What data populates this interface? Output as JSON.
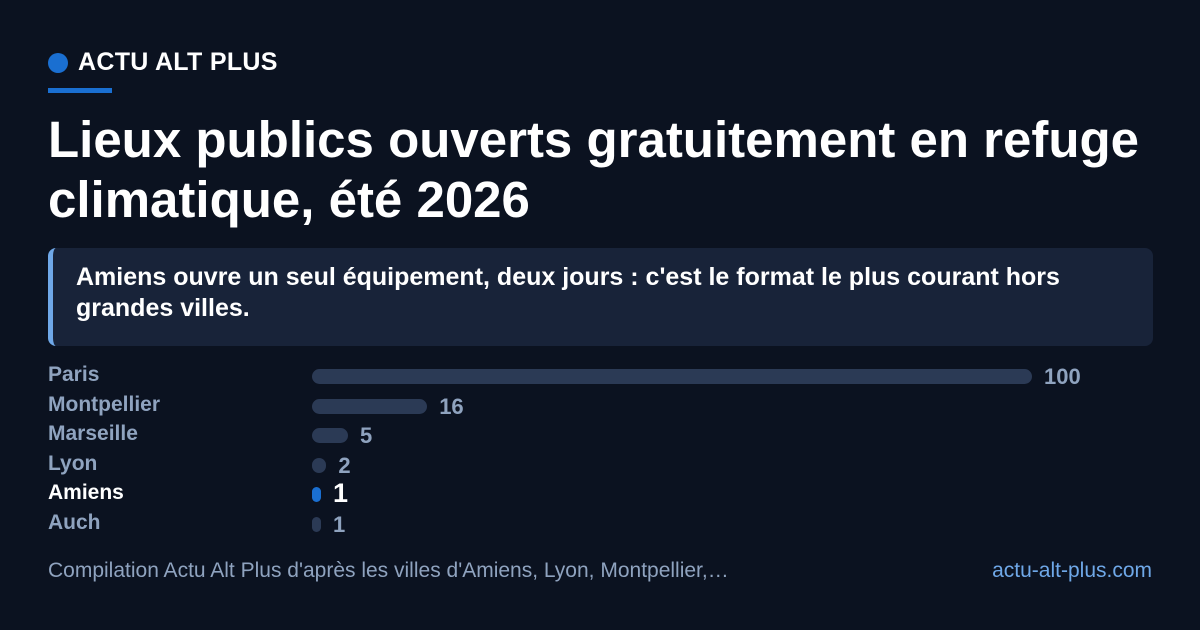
{
  "brand": {
    "name": "ACTU ALT PLUS",
    "accent": "#1a6fd1"
  },
  "title": "Lieux publics ouverts gratuitement en refuge climatique, été 2026",
  "callout": "Amiens ouvre un seul équipement, deux jours : c'est le format le plus courant hors grandes villes.",
  "chart_data": {
    "type": "bar",
    "orientation": "horizontal",
    "categories": [
      "Paris",
      "Montpellier",
      "Marseille",
      "Lyon",
      "Amiens",
      "Auch"
    ],
    "values": [
      100,
      16,
      5,
      2,
      1,
      1
    ],
    "value_labels": [
      "100",
      "16",
      "5",
      "2",
      "1",
      "1"
    ],
    "highlight": "Amiens",
    "title": "",
    "xlabel": "",
    "ylabel": "",
    "xlim": [
      0,
      100
    ],
    "grid": false,
    "colors": {
      "bar": "#2b3a55",
      "highlight": "#1a6fd1"
    }
  },
  "footer": {
    "source": "Compilation Actu Alt Plus d'après les villes d'Amiens, Lyon, Montpellier,…",
    "site": "actu-alt-plus.com"
  }
}
